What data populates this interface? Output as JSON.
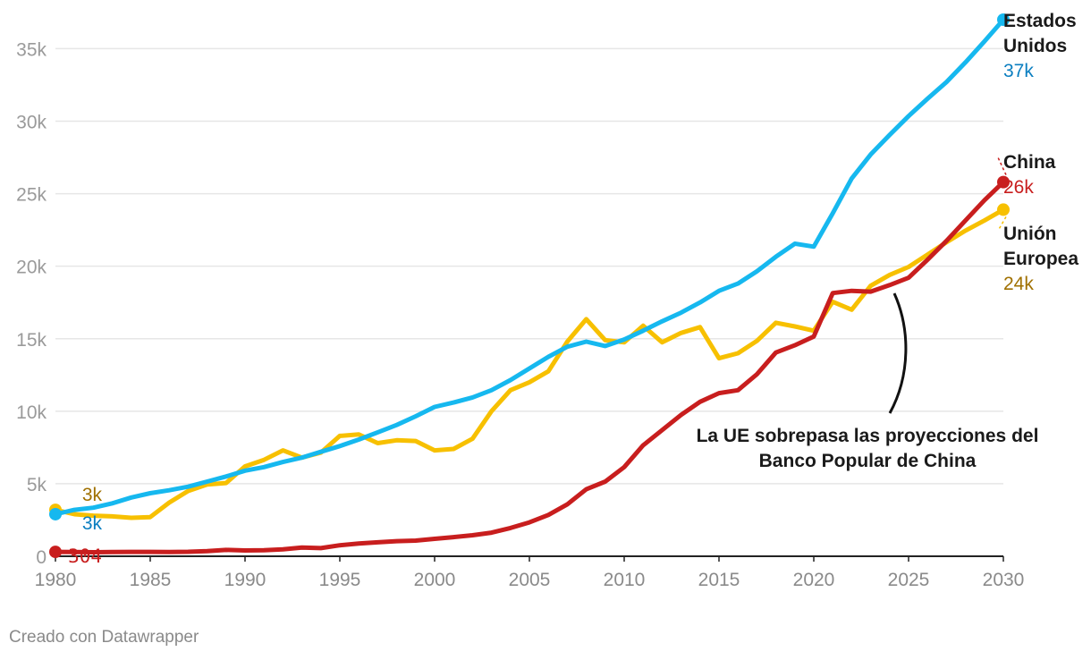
{
  "chart_data": {
    "type": "line",
    "title": "",
    "xlabel": "",
    "ylabel": "",
    "xlim": [
      1980,
      2030
    ],
    "ylim": [
      0,
      37000
    ],
    "y_ticks": [
      0,
      5000,
      10000,
      15000,
      20000,
      25000,
      30000,
      35000
    ],
    "y_tick_labels": [
      "0",
      "5k",
      "10k",
      "15k",
      "20k",
      "25k",
      "30k",
      "35k"
    ],
    "x_ticks": [
      1980,
      1985,
      1990,
      1995,
      2000,
      2005,
      2010,
      2015,
      2020,
      2025,
      2030
    ],
    "x_tick_labels": [
      "1980",
      "1985",
      "1990",
      "1995",
      "2000",
      "2005",
      "2010",
      "2015",
      "2020",
      "2025",
      "2030"
    ],
    "x": [
      1980,
      1981,
      1982,
      1983,
      1984,
      1985,
      1986,
      1987,
      1988,
      1989,
      1990,
      1991,
      1992,
      1993,
      1994,
      1995,
      1996,
      1997,
      1998,
      1999,
      2000,
      2001,
      2002,
      2003,
      2004,
      2005,
      2006,
      2007,
      2008,
      2009,
      2010,
      2011,
      2012,
      2013,
      2014,
      2015,
      2016,
      2017,
      2018,
      2019,
      2020,
      2021,
      2022,
      2023,
      2024,
      2025,
      2026,
      2027,
      2028,
      2029,
      2030
    ],
    "series": [
      {
        "name": "Unión Europea",
        "name_lines": [
          "Unión",
          "Europea"
        ],
        "end_label": "24k",
        "start_label": "3k",
        "color": "#f7c000",
        "label_color": "#a07000",
        "values": [
          3200,
          2900,
          2800,
          2750,
          2650,
          2700,
          3700,
          4500,
          4950,
          5050,
          6200,
          6650,
          7300,
          6800,
          7150,
          8300,
          8400,
          7800,
          8000,
          7950,
          7300,
          7400,
          8100,
          10000,
          11450,
          12000,
          12750,
          14800,
          16350,
          14900,
          14750,
          15900,
          14750,
          15400,
          15800,
          13650,
          14000,
          14850,
          16100,
          15850,
          15550,
          17550,
          17000,
          18650,
          19400,
          19950,
          20800,
          21650,
          22450,
          23150,
          23900
        ]
      },
      {
        "name": "Estados Unidos",
        "name_lines": [
          "Estados",
          "Unidos"
        ],
        "end_label": "37k",
        "start_label": "3k",
        "color": "#16b8ef",
        "label_color": "#0a7ec0",
        "values": [
          2900,
          3200,
          3350,
          3650,
          4050,
          4350,
          4550,
          4800,
          5150,
          5500,
          5900,
          6150,
          6500,
          6800,
          7200,
          7600,
          8050,
          8550,
          9050,
          9650,
          10300,
          10600,
          10950,
          11450,
          12150,
          12950,
          13750,
          14450,
          14800,
          14500,
          14950,
          15550,
          16200,
          16800,
          17500,
          18300,
          18800,
          19650,
          20650,
          21550,
          21350,
          23650,
          26050,
          27700,
          29050,
          30350,
          31550,
          32700,
          34050,
          35500,
          37000
        ]
      },
      {
        "name": "China",
        "name_lines": [
          "China"
        ],
        "end_label": "26k",
        "start_label": "304",
        "color": "#c81e1e",
        "label_color": "#c81e1e",
        "values": [
          304,
          290,
          280,
          290,
          300,
          300,
          290,
          310,
          360,
          440,
          400,
          420,
          480,
          600,
          560,
          760,
          880,
          960,
          1040,
          1080,
          1200,
          1320,
          1450,
          1630,
          1950,
          2340,
          2850,
          3580,
          4620,
          5150,
          6150,
          7650,
          8700,
          9750,
          10650,
          11250,
          11450,
          12550,
          14050,
          14550,
          15150,
          18150,
          18300,
          18250,
          18700,
          19200,
          20450,
          21750,
          23150,
          24550,
          25800
        ]
      }
    ],
    "annotations": [
      {
        "text_lines": [
          "La UE sobrepasa las proyecciones del",
          "Banco Popular de China"
        ]
      }
    ],
    "grid": true,
    "legend": "direct labels at line ends (right)"
  },
  "footer": {
    "credit": "Creado con Datawrapper"
  }
}
